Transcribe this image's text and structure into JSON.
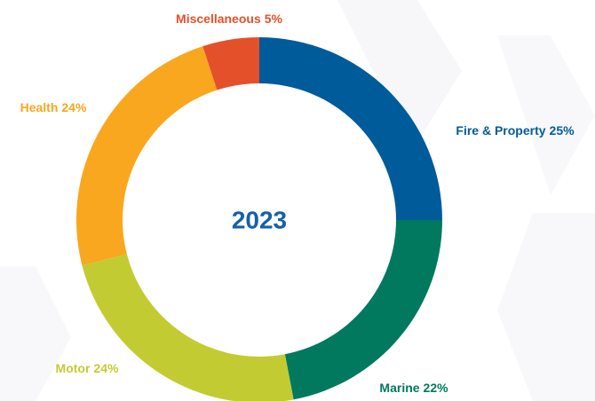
{
  "chart_data": {
    "type": "donut",
    "title": "2023",
    "categories": [
      "Fire & Property",
      "Marine",
      "Motor",
      "Health",
      "Miscellaneous"
    ],
    "values": [
      25,
      22,
      24,
      24,
      5
    ],
    "value_labels": [
      "25%",
      "22%",
      "24%",
      "24%",
      "5%"
    ],
    "colors": [
      "#005b9a",
      "#00795f",
      "#c3cb33",
      "#f8a71e",
      "#e4502a"
    ]
  }
}
